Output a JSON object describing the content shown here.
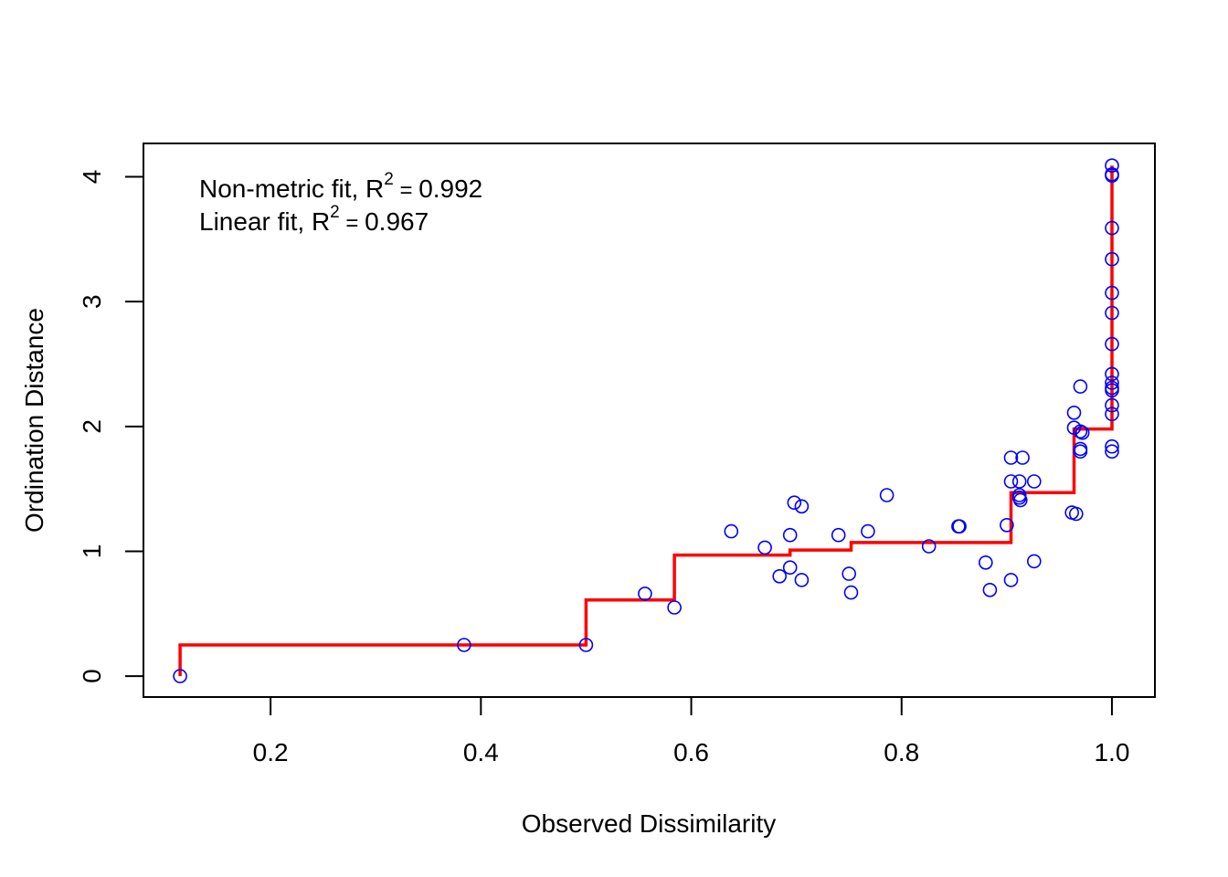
{
  "chart_data": {
    "type": "scatter",
    "title": "",
    "xlabel": "Observed Dissimilarity",
    "ylabel": "Ordination Distance",
    "xlim": [
      0.08,
      1.04
    ],
    "ylim": [
      -0.16,
      4.26
    ],
    "grid": false,
    "x_ticks": [
      0.2,
      0.4,
      0.6,
      0.8,
      1.0
    ],
    "x_tick_labels": [
      "0.2",
      "0.4",
      "0.6",
      "0.8",
      "1.0"
    ],
    "y_ticks": [
      0,
      1,
      2,
      3,
      4
    ],
    "y_tick_labels": [
      "0",
      "1",
      "2",
      "3",
      "4"
    ],
    "annotations": {
      "nonmetric": {
        "prefix": "Non-metric fit, R",
        "sup": "2",
        "eq": " = ",
        "value": "0.992"
      },
      "linear": {
        "prefix": "Linear fit, R",
        "sup": "2",
        "eq": " = ",
        "value": "0.967"
      }
    },
    "colors": {
      "points": "#0000ff",
      "step_line": "#ff0000",
      "axes": "#000000"
    },
    "points": [
      [
        0.114,
        0.0
      ],
      [
        0.384,
        0.25
      ],
      [
        0.5,
        0.25
      ],
      [
        0.556,
        0.66
      ],
      [
        0.584,
        0.55
      ],
      [
        0.638,
        1.16
      ],
      [
        0.67,
        1.03
      ],
      [
        0.684,
        0.8
      ],
      [
        0.694,
        1.13
      ],
      [
        0.694,
        0.87
      ],
      [
        0.698,
        1.39
      ],
      [
        0.705,
        1.36
      ],
      [
        0.705,
        0.77
      ],
      [
        0.74,
        1.13
      ],
      [
        0.75,
        0.82
      ],
      [
        0.752,
        0.67
      ],
      [
        0.768,
        1.16
      ],
      [
        0.786,
        1.45
      ],
      [
        0.826,
        1.04
      ],
      [
        0.854,
        1.2
      ],
      [
        0.855,
        1.2
      ],
      [
        0.88,
        0.91
      ],
      [
        0.884,
        0.69
      ],
      [
        0.9,
        1.21
      ],
      [
        0.904,
        1.75
      ],
      [
        0.904,
        1.56
      ],
      [
        0.904,
        0.77
      ],
      [
        0.912,
        1.56
      ],
      [
        0.912,
        1.45
      ],
      [
        0.912,
        1.43
      ],
      [
        0.913,
        1.41
      ],
      [
        0.915,
        1.75
      ],
      [
        0.926,
        1.56
      ],
      [
        0.926,
        0.92
      ],
      [
        0.962,
        1.31
      ],
      [
        0.964,
        2.11
      ],
      [
        0.964,
        1.99
      ],
      [
        0.966,
        1.3
      ],
      [
        0.97,
        2.32
      ],
      [
        0.97,
        1.96
      ],
      [
        0.97,
        1.82
      ],
      [
        0.97,
        1.8
      ],
      [
        0.972,
        1.95
      ],
      [
        1.0,
        4.09
      ],
      [
        1.0,
        4.02
      ],
      [
        1.0,
        4.01
      ],
      [
        1.0,
        3.59
      ],
      [
        1.0,
        3.34
      ],
      [
        1.0,
        3.07
      ],
      [
        1.0,
        2.91
      ],
      [
        1.0,
        2.66
      ],
      [
        1.0,
        2.42
      ],
      [
        1.0,
        2.35
      ],
      [
        1.0,
        2.31
      ],
      [
        1.0,
        2.29
      ],
      [
        1.0,
        2.17
      ],
      [
        1.0,
        2.1
      ],
      [
        1.0,
        1.84
      ],
      [
        1.0,
        1.8
      ]
    ],
    "step_line": [
      [
        0.114,
        0.0
      ],
      [
        0.114,
        0.25
      ],
      [
        0.5,
        0.25
      ],
      [
        0.5,
        0.61
      ],
      [
        0.584,
        0.61
      ],
      [
        0.584,
        0.97
      ],
      [
        0.694,
        0.97
      ],
      [
        0.694,
        1.01
      ],
      [
        0.752,
        1.01
      ],
      [
        0.752,
        1.07
      ],
      [
        0.904,
        1.07
      ],
      [
        0.904,
        1.47
      ],
      [
        0.964,
        1.47
      ],
      [
        0.964,
        1.98
      ],
      [
        1.0,
        1.98
      ],
      [
        1.0,
        4.09
      ]
    ]
  }
}
